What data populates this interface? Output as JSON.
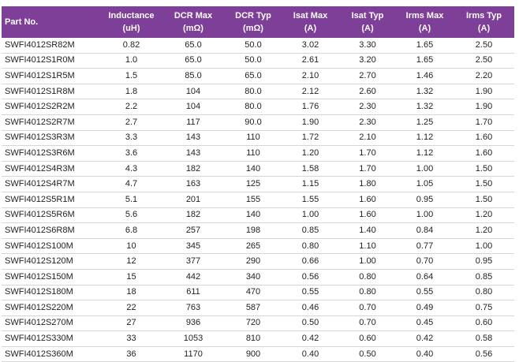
{
  "table": {
    "columns": [
      {
        "name": "Part No."
      },
      {
        "name": "Inductance",
        "unit": "(uH)"
      },
      {
        "name": "DCR Max",
        "unit": "(mΩ)"
      },
      {
        "name": "DCR Typ",
        "unit": "(mΩ)"
      },
      {
        "name": "Isat Max",
        "unit": "(A)"
      },
      {
        "name": "Isat Typ",
        "unit": "(A)"
      },
      {
        "name": "Irms Max",
        "unit": "(A)"
      },
      {
        "name": "Irms Typ",
        "unit": "(A)"
      }
    ],
    "rows": [
      [
        "SWFI4012SR82M",
        "0.82",
        "65.0",
        "50.0",
        "3.02",
        "3.30",
        "1.65",
        "2.50"
      ],
      [
        "SWFI4012S1R0M",
        "1.0",
        "65.0",
        "50.0",
        "2.61",
        "3.20",
        "1.65",
        "2.50"
      ],
      [
        "SWFI4012S1R5M",
        "1.5",
        "85.0",
        "65.0",
        "2.10",
        "2.70",
        "1.46",
        "2.20"
      ],
      [
        "SWFI4012S1R8M",
        "1.8",
        "104",
        "80.0",
        "2.12",
        "2.60",
        "1.32",
        "1.90"
      ],
      [
        "SWFI4012S2R2M",
        "2.2",
        "104",
        "80.0",
        "1.76",
        "2.30",
        "1.32",
        "1.90"
      ],
      [
        "SWFI4012S2R7M",
        "2.7",
        "117",
        "90.0",
        "1.90",
        "2.30",
        "1.25",
        "1.70"
      ],
      [
        "SWFI4012S3R3M",
        "3.3",
        "143",
        "110",
        "1.72",
        "2.10",
        "1.12",
        "1.60"
      ],
      [
        "SWFI4012S3R6M",
        "3.6",
        "143",
        "110",
        "1.20",
        "1.70",
        "1.12",
        "1.60"
      ],
      [
        "SWFI4012S4R3M",
        "4.3",
        "182",
        "140",
        "1.58",
        "1.70",
        "1.00",
        "1.50"
      ],
      [
        "SWFI4012S4R7M",
        "4.7",
        "163",
        "125",
        "1.15",
        "1.80",
        "1.05",
        "1.50"
      ],
      [
        "SWFI4012S5R1M",
        "5.1",
        "201",
        "155",
        "1.55",
        "1.60",
        "0.95",
        "1.50"
      ],
      [
        "SWFI4012S5R6M",
        "5.6",
        "182",
        "140",
        "1.00",
        "1.60",
        "1.00",
        "1.20"
      ],
      [
        "SWFI4012S6R8M",
        "6.8",
        "257",
        "198",
        "0.85",
        "1.40",
        "0.84",
        "1.20"
      ],
      [
        "SWFI4012S100M",
        "10",
        "345",
        "265",
        "0.80",
        "1.10",
        "0.77",
        "1.00"
      ],
      [
        "SWFI4012S120M",
        "12",
        "377",
        "290",
        "0.66",
        "1.00",
        "0.70",
        "0.95"
      ],
      [
        "SWFI4012S150M",
        "15",
        "442",
        "340",
        "0.56",
        "0.80",
        "0.64",
        "0.85"
      ],
      [
        "SWFI4012S180M",
        "18",
        "611",
        "470",
        "0.55",
        "0.80",
        "0.55",
        "0.80"
      ],
      [
        "SWFI4012S220M",
        "22",
        "763",
        "587",
        "0.46",
        "0.70",
        "0.49",
        "0.75"
      ],
      [
        "SWFI4012S270M",
        "27",
        "936",
        "720",
        "0.50",
        "0.70",
        "0.45",
        "0.60"
      ],
      [
        "SWFI4012S330M",
        "33",
        "1053",
        "810",
        "0.42",
        "0.60",
        "0.42",
        "0.58"
      ],
      [
        "SWFI4012S360M",
        "36",
        "1170",
        "900",
        "0.40",
        "0.50",
        "0.40",
        "0.56"
      ]
    ]
  }
}
